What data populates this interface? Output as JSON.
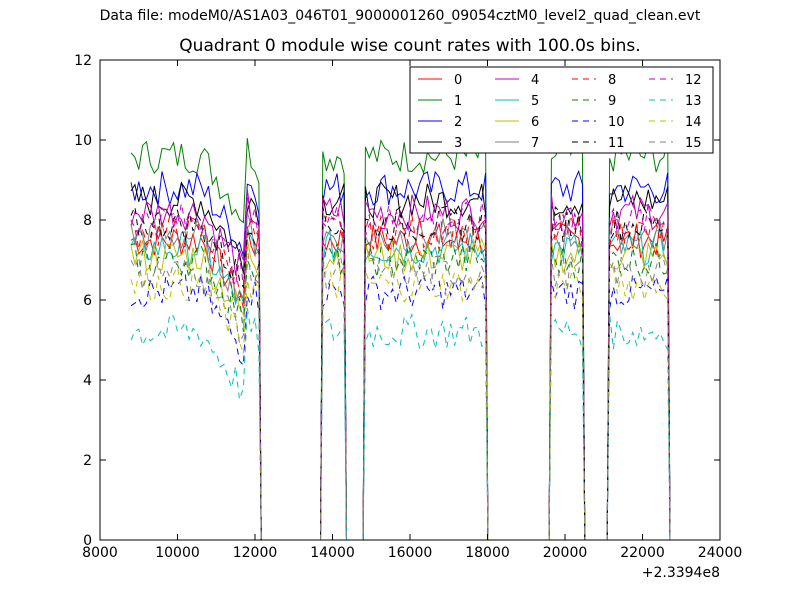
{
  "suptitle": "Data file: modeM0/AS1A03_046T01_9000001260_09054cztM0_level2_quad_clean.evt",
  "chart_data": {
    "type": "line",
    "title": "Quadrant 0 module wise count rates with 100.0s bins.",
    "xlabel": "",
    "ylabel": "",
    "xlim": [
      8000,
      24000
    ],
    "ylim": [
      0,
      12
    ],
    "x_offset_label": "+2.3394e8",
    "x_ticks": [
      8000,
      10000,
      12000,
      14000,
      16000,
      18000,
      20000,
      22000,
      24000
    ],
    "y_ticks": [
      0,
      2,
      4,
      6,
      8,
      10,
      12
    ],
    "grid": false,
    "legend_position": "top-right",
    "legend_columns": 4,
    "segments": [
      {
        "start": 8800,
        "end": 12100
      },
      {
        "start": 13750,
        "end": 14300
      },
      {
        "start": 14850,
        "end": 17950
      },
      {
        "start": 19650,
        "end": 20450
      },
      {
        "start": 21150,
        "end": 22650
      }
    ],
    "series": [
      {
        "name": "0",
        "color": "#ff0000",
        "dash": "solid",
        "level": 7.5
      },
      {
        "name": "1",
        "color": "#008000",
        "dash": "solid",
        "level": 9.6
      },
      {
        "name": "2",
        "color": "#0000ff",
        "dash": "solid",
        "level": 8.8
      },
      {
        "name": "3",
        "color": "#000000",
        "dash": "solid",
        "level": 8.5
      },
      {
        "name": "4",
        "color": "#bf00bf",
        "dash": "solid",
        "level": 8.2
      },
      {
        "name": "5",
        "color": "#00bfbf",
        "dash": "solid",
        "level": 7.3
      },
      {
        "name": "6",
        "color": "#bfbf00",
        "dash": "solid",
        "level": 7.1
      },
      {
        "name": "7",
        "color": "#808080",
        "dash": "solid",
        "level": 7.6
      },
      {
        "name": "8",
        "color": "#ff0000",
        "dash": "dashed",
        "level": 7.7
      },
      {
        "name": "9",
        "color": "#008000",
        "dash": "dashed",
        "level": 7.0
      },
      {
        "name": "10",
        "color": "#0000ff",
        "dash": "dashed",
        "level": 6.2
      },
      {
        "name": "11",
        "color": "#000000",
        "dash": "dashed",
        "level": 7.9
      },
      {
        "name": "12",
        "color": "#bf00bf",
        "dash": "dashed",
        "level": 8.0
      },
      {
        "name": "13",
        "color": "#00bfbf",
        "dash": "dashed",
        "level": 5.2
      },
      {
        "name": "14",
        "color": "#bfbf00",
        "dash": "dashed",
        "level": 6.4
      },
      {
        "name": "15",
        "color": "#808080",
        "dash": "dashed",
        "level": 6.7
      }
    ]
  }
}
